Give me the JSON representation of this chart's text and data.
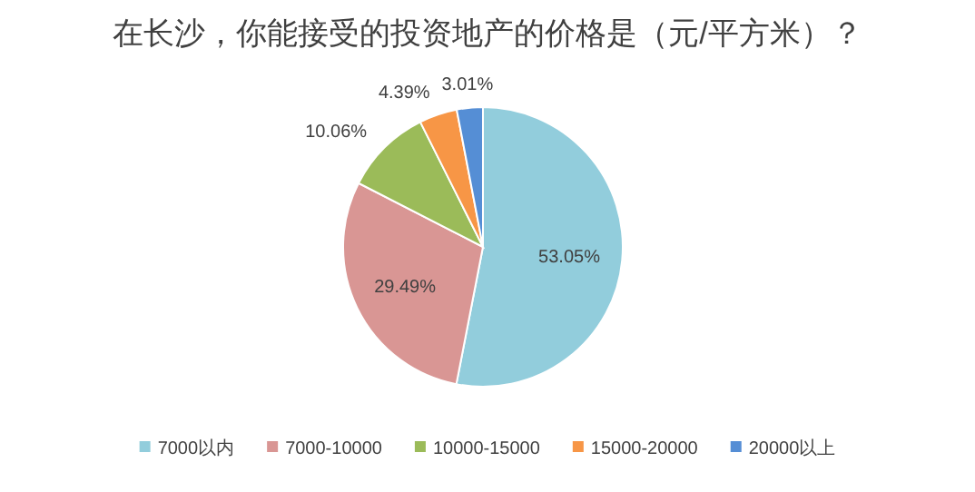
{
  "chart_data": {
    "type": "pie",
    "title": "在长沙，你能接受的投资地产的价格是（元/平方米）？",
    "categories": [
      "7000以内",
      "7000-10000",
      "10000-15000",
      "15000-20000",
      "20000以上"
    ],
    "values": [
      53.05,
      29.49,
      10.06,
      4.39,
      3.01
    ],
    "value_labels": [
      "53.05%",
      "29.49%",
      "10.06%",
      "4.39%",
      "3.01%"
    ],
    "colors": [
      "#92cddc",
      "#d99694",
      "#9bbb59",
      "#f79646",
      "#558ed5"
    ],
    "legend": "bottom"
  }
}
